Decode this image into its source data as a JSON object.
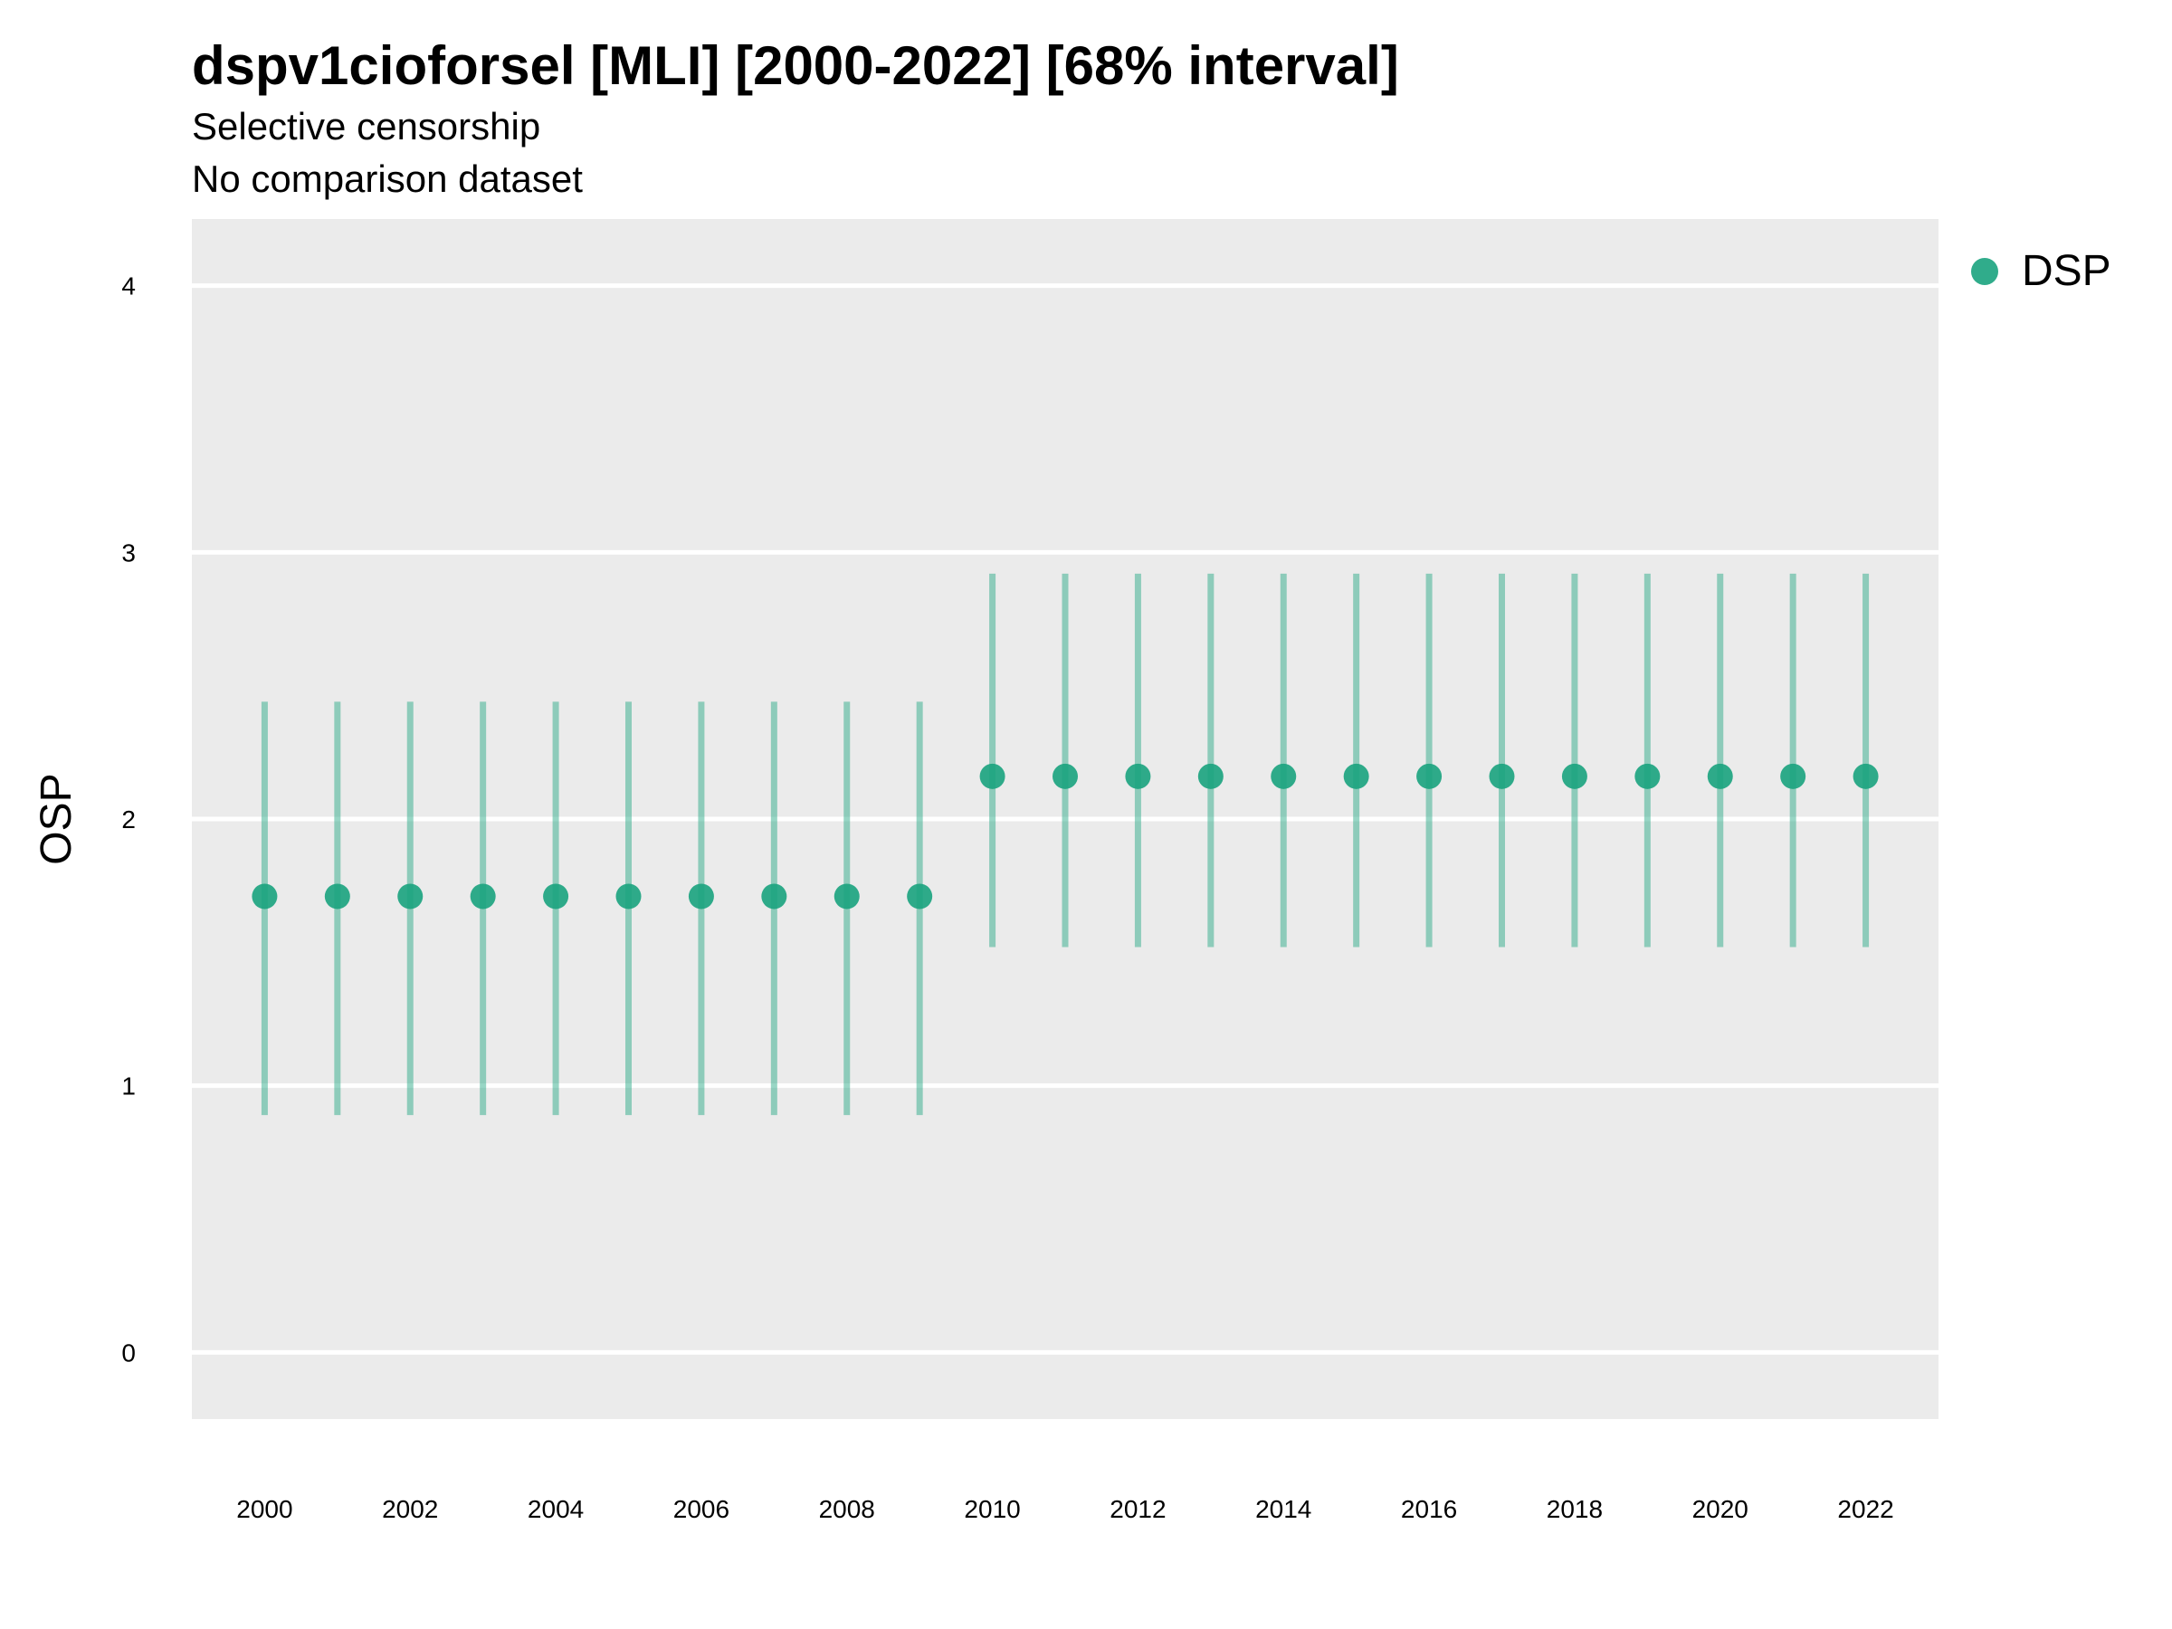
{
  "chart_data": {
    "type": "scatter",
    "title": "dspv1cioforsel [MLI] [2000-2022] [68% interval]",
    "subtitle": [
      "Selective censorship",
      "No comparison dataset"
    ],
    "xlabel": "",
    "ylabel": "OSP",
    "xlim": [
      1999,
      2023
    ],
    "ylim": [
      -0.25,
      4.25
    ],
    "x_ticks": [
      2000,
      2002,
      2004,
      2006,
      2008,
      2010,
      2012,
      2014,
      2016,
      2018,
      2020,
      2022
    ],
    "y_ticks": [
      0,
      1,
      2,
      3,
      4
    ],
    "grid": true,
    "legend": "right",
    "series": [
      {
        "name": "DSP",
        "color": "#1aa37e",
        "x": [
          2000,
          2001,
          2002,
          2003,
          2004,
          2005,
          2006,
          2007,
          2008,
          2009,
          2010,
          2011,
          2012,
          2013,
          2014,
          2015,
          2016,
          2017,
          2018,
          2019,
          2020,
          2021,
          2022
        ],
        "y": [
          1.71,
          1.71,
          1.71,
          1.71,
          1.71,
          1.71,
          1.71,
          1.71,
          1.71,
          1.71,
          2.16,
          2.16,
          2.16,
          2.16,
          2.16,
          2.16,
          2.16,
          2.16,
          2.16,
          2.16,
          2.16,
          2.16,
          2.16
        ],
        "lower": [
          0.89,
          0.89,
          0.89,
          0.89,
          0.89,
          0.89,
          0.89,
          0.89,
          0.89,
          0.89,
          1.52,
          1.52,
          1.52,
          1.52,
          1.52,
          1.52,
          1.52,
          1.52,
          1.52,
          1.52,
          1.52,
          1.52,
          1.52
        ],
        "upper": [
          2.44,
          2.44,
          2.44,
          2.44,
          2.44,
          2.44,
          2.44,
          2.44,
          2.44,
          2.44,
          2.92,
          2.92,
          2.92,
          2.92,
          2.92,
          2.92,
          2.92,
          2.92,
          2.92,
          2.92,
          2.92,
          2.92,
          2.92
        ]
      }
    ]
  }
}
